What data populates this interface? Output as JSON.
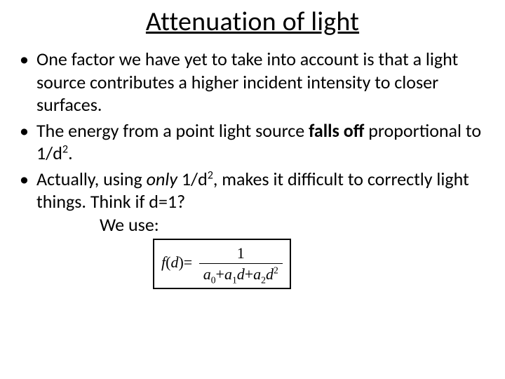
{
  "title": "Attenuation of light",
  "bullets": {
    "b1": "One factor we have yet to take into account is that a light source contributes a higher incident intensity to closer surfaces.",
    "b2_pre": "The energy from a point light source ",
    "b2_bold": "falls off",
    "b2_post1": " proportional to 1/d",
    "b2_sup": "2",
    "b2_post2": ".",
    "b3_pre": "Actually, using ",
    "b3_italic": "only",
    "b3_mid1": " 1/d",
    "b3_sup": "2",
    "b3_mid2": ", makes it difficult to correctly light things.  Think if d=1?",
    "we_use": "We use:"
  },
  "formula": {
    "lhs_f": "f",
    "lhs_open": "(",
    "lhs_d": "d",
    "lhs_close": ")",
    "eq": "=",
    "num": "1",
    "den_a0": "a",
    "den_a0_sub": "0",
    "den_plus1": "+",
    "den_a1": "a",
    "den_a1_sub": "1",
    "den_d1": "d",
    "den_plus2": "+",
    "den_a2": "a",
    "den_a2_sub": "2",
    "den_d2": "d",
    "den_d2_sup": "2"
  },
  "style": {
    "title_color": "#000000",
    "text_color": "#000000",
    "title_fontsize": 38,
    "body_fontsize": 26,
    "formula_border_color": "#000000",
    "background": "#ffffff",
    "formula_fontfamily": "Times New Roman"
  }
}
